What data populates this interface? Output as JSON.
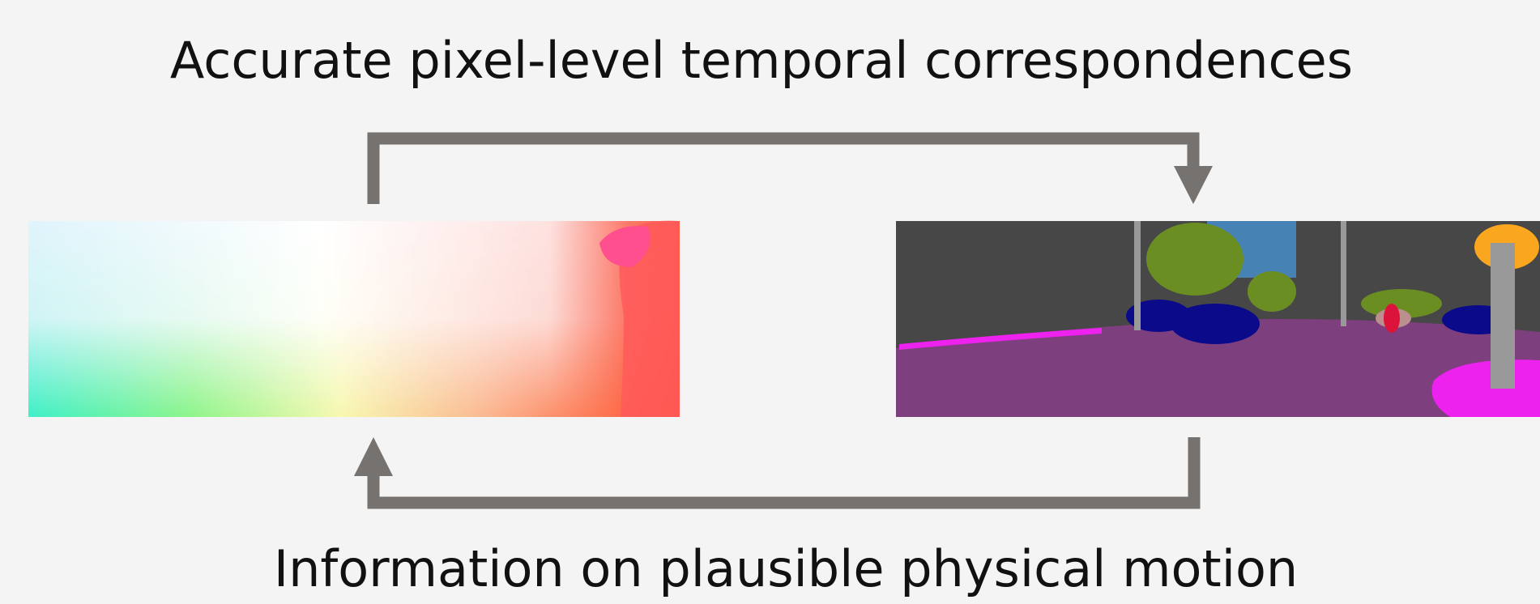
{
  "top_label": "Accurate pixel-level temporal correspondences",
  "bottom_label": "Information on plausible physical motion"
}
